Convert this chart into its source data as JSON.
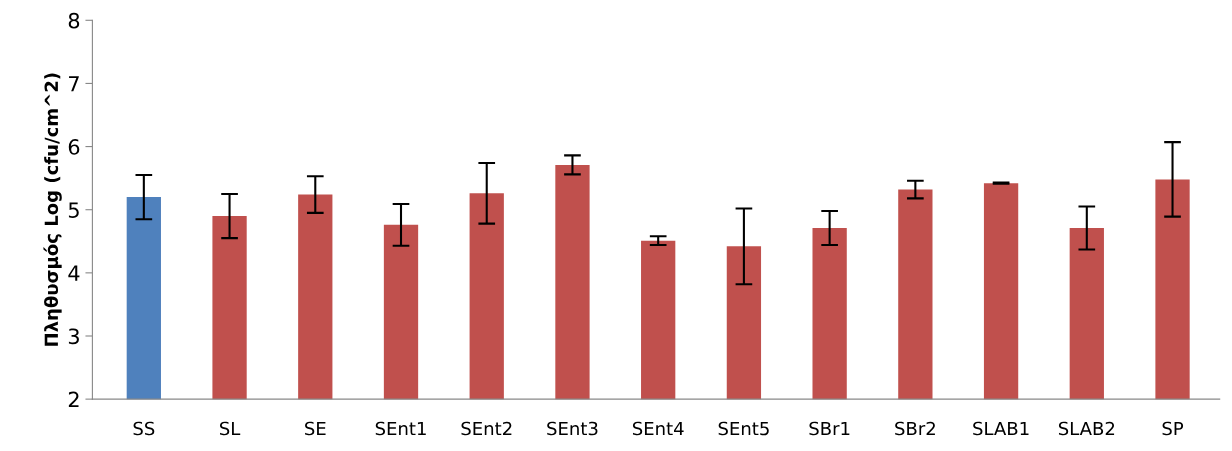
{
  "chart_data": {
    "type": "bar",
    "ylabel": "Πληθυσμός Log (cfu/cm^2)",
    "categories": [
      "SS",
      "SL",
      "SE",
      "SEnt1",
      "SEnt2",
      "SEnt3",
      "SEnt4",
      "SEnt5",
      "SBr1",
      "SBr2",
      "SLAB1",
      "SLAB2",
      "SP"
    ],
    "values": [
      5.2,
      4.9,
      5.24,
      4.76,
      5.26,
      5.71,
      4.51,
      4.42,
      4.71,
      5.32,
      5.42,
      4.71,
      5.48
    ],
    "errors": [
      0.35,
      0.35,
      0.29,
      0.33,
      0.48,
      0.15,
      0.07,
      0.6,
      0.27,
      0.14,
      0.01,
      0.34,
      0.59
    ],
    "colors": [
      "#4f81bd",
      "#c0504d",
      "#c0504d",
      "#c0504d",
      "#c0504d",
      "#c0504d",
      "#c0504d",
      "#c0504d",
      "#c0504d",
      "#c0504d",
      "#c0504d",
      "#c0504d",
      "#c0504d"
    ],
    "ylim": [
      2,
      8
    ],
    "yticks": [
      2,
      3,
      4,
      5,
      6,
      7,
      8
    ],
    "grid": false,
    "legend": false
  }
}
